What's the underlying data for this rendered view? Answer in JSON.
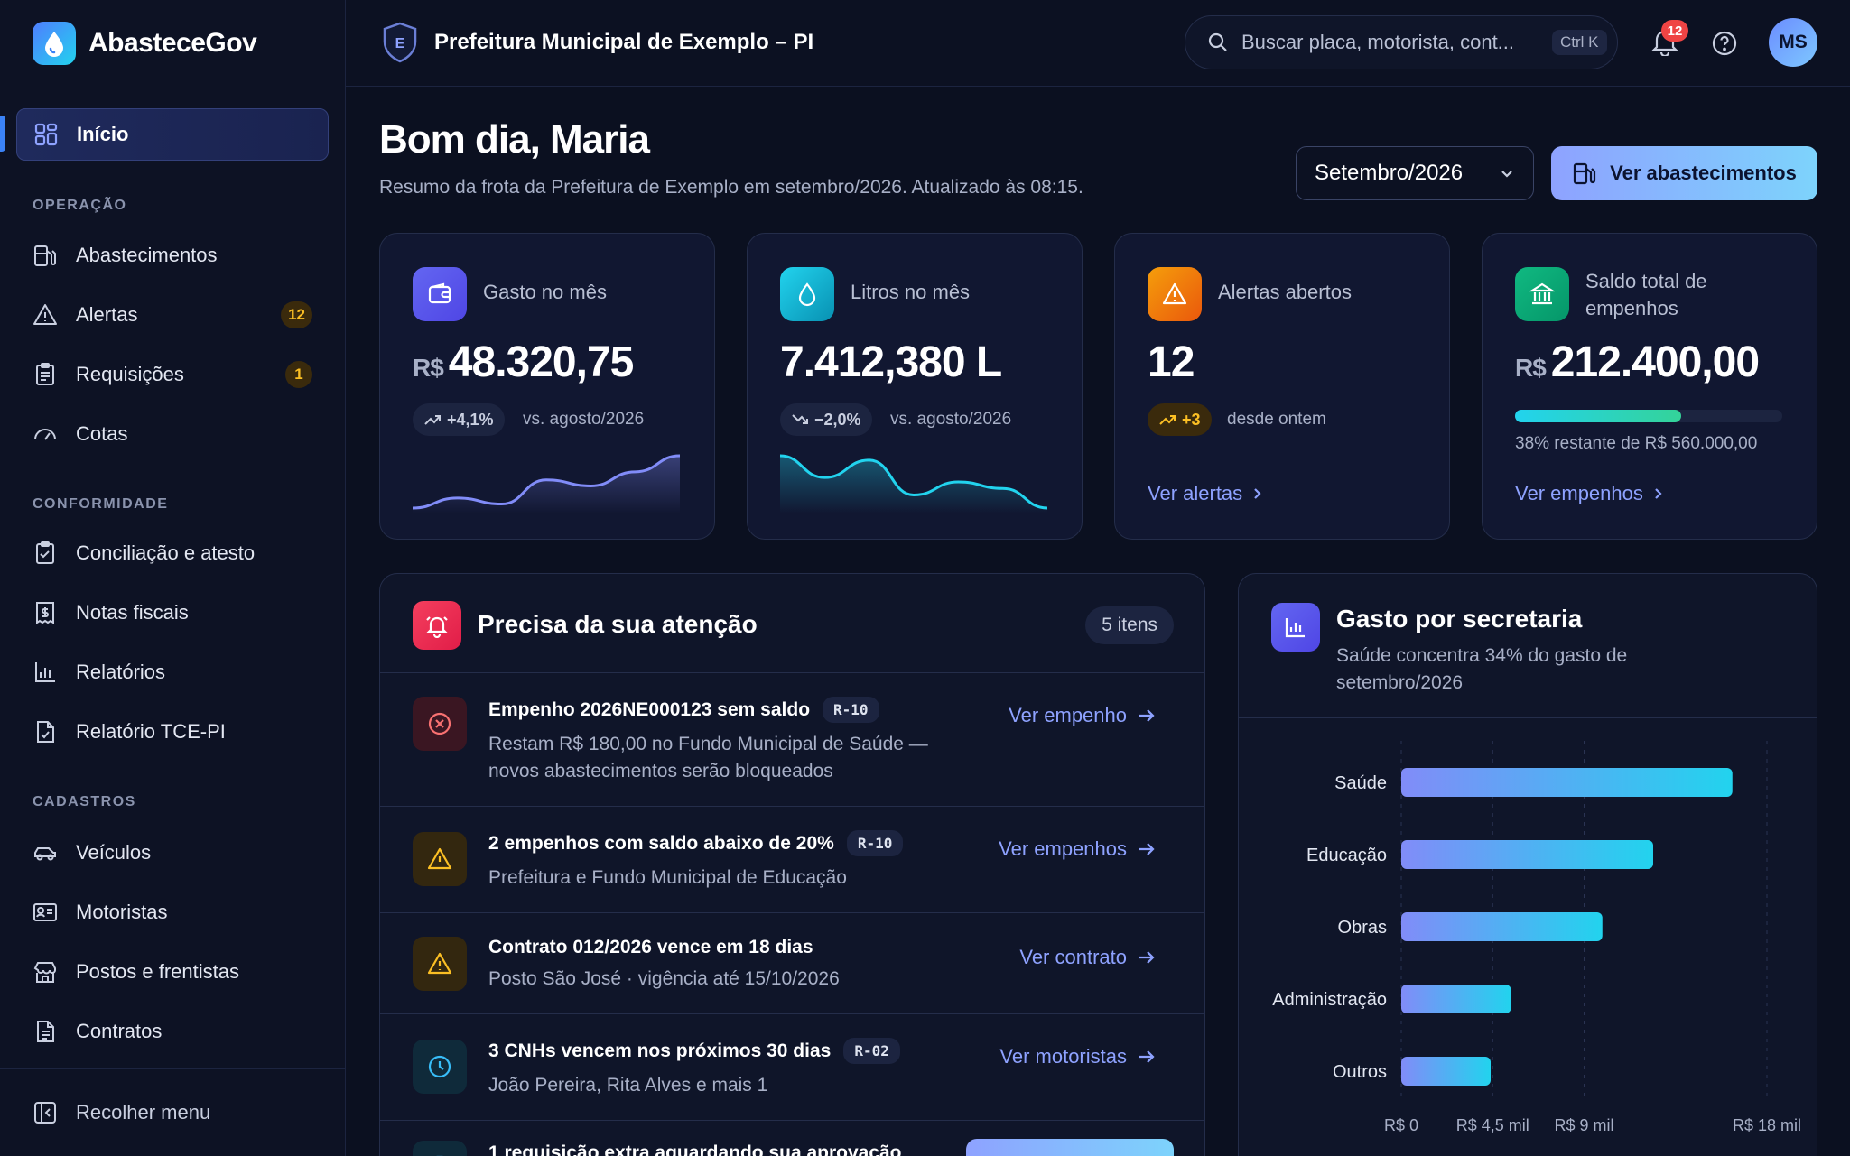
{
  "app": {
    "name": "AbasteceGov"
  },
  "org": {
    "name": "Prefeitura Municipal de Exemplo – PI",
    "shield_letter": "E"
  },
  "search": {
    "placeholder": "Buscar placa, motorista, cont...",
    "shortcut": "Ctrl K"
  },
  "notifications": {
    "count": "12"
  },
  "user": {
    "initials": "MS"
  },
  "sidebar": {
    "home": "Início",
    "sections": {
      "operacao": "OPERAÇÃO",
      "conformidade": "CONFORMIDADE",
      "cadastros": "CADASTROS"
    },
    "items": [
      {
        "label": "Abastecimentos",
        "icon": "fuel-pump-icon"
      },
      {
        "label": "Alertas",
        "icon": "warning-icon",
        "badge": "12"
      },
      {
        "label": "Requisições",
        "icon": "clipboard-icon",
        "badge": "1"
      },
      {
        "label": "Cotas",
        "icon": "gauge-icon"
      },
      {
        "label": "Conciliação e atesto",
        "icon": "clipboard-check-icon"
      },
      {
        "label": "Notas fiscais",
        "icon": "receipt-icon"
      },
      {
        "label": "Relatórios",
        "icon": "bar-chart-icon"
      },
      {
        "label": "Relatório TCE-PI",
        "icon": "file-check-icon"
      },
      {
        "label": "Veículos",
        "icon": "car-icon"
      },
      {
        "label": "Motoristas",
        "icon": "id-card-icon"
      },
      {
        "label": "Postos e frentistas",
        "icon": "store-icon"
      },
      {
        "label": "Contratos",
        "icon": "document-icon"
      }
    ],
    "collapse": "Recolher menu"
  },
  "header": {
    "greeting": "Bom dia, Maria",
    "subtitle": "Resumo da frota da Prefeitura de Exemplo em setembro/2026. Atualizado às 08:15.",
    "month": "Setembro/2026",
    "primary_action": "Ver abastecimentos"
  },
  "kpis": {
    "gasto": {
      "label": "Gasto no mês",
      "currency": "R$",
      "value": "48.320,75",
      "trend": "+4,1%",
      "compare": "vs. agosto/2026",
      "spark": [
        4,
        9,
        6,
        18,
        15,
        22,
        30
      ]
    },
    "litros": {
      "label": "Litros no mês",
      "value": "7.412,380 L",
      "trend": "−2,0%",
      "compare": "vs. agosto/2026",
      "spark": [
        28,
        18,
        26,
        10,
        16,
        13,
        4
      ]
    },
    "alertas": {
      "label": "Alertas abertos",
      "value": "12",
      "trend": "+3",
      "compare": "desde ontem",
      "link": "Ver alertas"
    },
    "saldo": {
      "label": "Saldo total de empenhos",
      "currency": "R$",
      "value": "212.400,00",
      "progress": 0.62,
      "note": "38% restante de R$ 560.000,00",
      "link": "Ver empenhos"
    }
  },
  "attention": {
    "title": "Precisa da sua atenção",
    "count": "5 itens",
    "items": [
      {
        "title": "Empenho 2026NE000123 sem saldo",
        "code": "R-10",
        "desc": "Restam R$ 180,00 no Fundo Municipal de Saúde — novos abastecimentos serão bloqueados",
        "link": "Ver empenho",
        "icon": "x-circle-icon",
        "severity": "#ef4444"
      },
      {
        "title": "2 empenhos com saldo abaixo de 20%",
        "code": "R-10",
        "desc": "Prefeitura e Fundo Municipal de Educação",
        "link": "Ver empenhos",
        "icon": "warning-icon",
        "severity": "#f59e0b"
      },
      {
        "title": "Contrato 012/2026 vence em 18 dias",
        "code": "",
        "desc": "Posto São José · vigência até 15/10/2026",
        "link": "Ver contrato",
        "icon": "warning-icon",
        "severity": "#f59e0b"
      },
      {
        "title": "3 CNHs vencem nos próximos 30 dias",
        "code": "R-02",
        "desc": "João Pereira, Rita Alves e mais 1",
        "link": "Ver motoristas",
        "icon": "clock-icon",
        "severity": "#38bdf8"
      },
      {
        "title": "1 requisição extra aguardando sua aprovação",
        "code": "",
        "desc": "",
        "link": "",
        "icon": "clipboard-icon",
        "severity": "#38bdf8"
      }
    ]
  },
  "spend": {
    "title": "Gasto por secretaria",
    "subtitle": "Saúde concentra 34% do gasto de setembro/2026"
  },
  "chart_data": {
    "type": "bar",
    "orientation": "horizontal",
    "categories": [
      "Saúde",
      "Educação",
      "Obras",
      "Administração",
      "Outros"
    ],
    "values": [
      16300,
      12400,
      9900,
      5400,
      4400
    ],
    "xlim": [
      0,
      18000
    ],
    "ticks": [
      {
        "value": 0,
        "label": "R$ 0"
      },
      {
        "value": 4500,
        "label": "R$ 4,5 mil"
      },
      {
        "value": 9000,
        "label": "R$ 9 mil"
      },
      {
        "value": 18000,
        "label": "R$ 18 mil"
      }
    ],
    "colors": {
      "start": "#818cf8",
      "end": "#22d3ee"
    }
  }
}
